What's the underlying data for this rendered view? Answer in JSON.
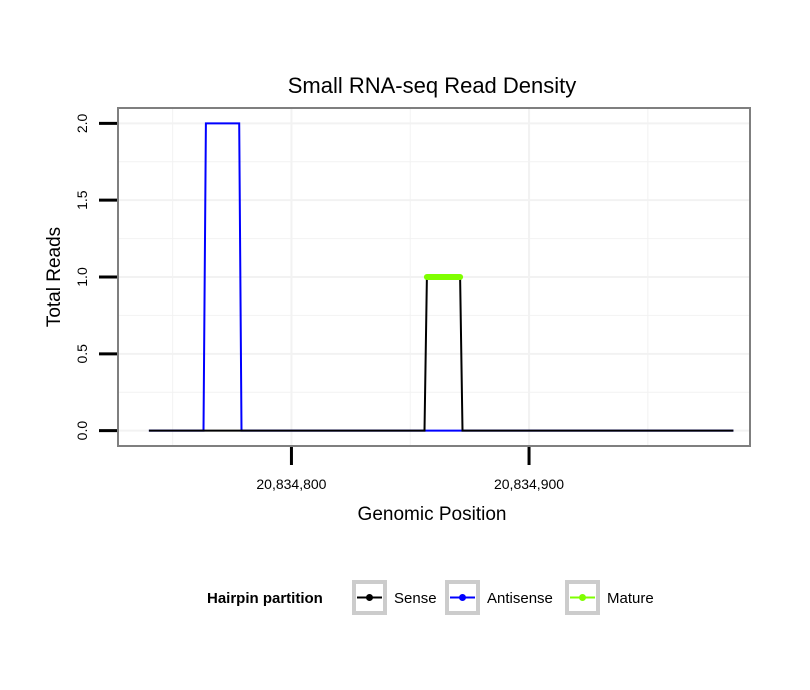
{
  "chart_data": {
    "type": "line",
    "title": "Small RNA-seq Read Density",
    "xlabel": "Genomic Position",
    "ylabel": "Total Reads",
    "xlim": [
      20834727,
      20834993
    ],
    "ylim": [
      -0.1,
      2.1
    ],
    "x_ticks": [
      {
        "value": 20834800,
        "label": "20,834,800"
      },
      {
        "value": 20834900,
        "label": "20,834,900"
      }
    ],
    "y_ticks": [
      {
        "value": 0.0,
        "label": "0.0"
      },
      {
        "value": 0.5,
        "label": "0.5"
      },
      {
        "value": 1.0,
        "label": "1.0"
      },
      {
        "value": 1.5,
        "label": "1.5"
      },
      {
        "value": 2.0,
        "label": "2.0"
      }
    ],
    "grid": true,
    "legend": {
      "title": "Hairpin partition",
      "position": "bottom",
      "entries": [
        {
          "name": "Sense",
          "color": "#000000"
        },
        {
          "name": "Antisense",
          "color": "#0000ff"
        },
        {
          "name": "Mature",
          "color": "#7fff00"
        }
      ]
    },
    "series": [
      {
        "name": "Antisense",
        "color": "#0000ff",
        "x": [
          20834740,
          20834763,
          20834764,
          20834778,
          20834779,
          20834986
        ],
        "y": [
          0,
          0,
          2,
          2,
          0,
          0
        ]
      },
      {
        "name": "Sense",
        "color": "#000000",
        "x": [
          20834740,
          20834856,
          20834857,
          20834871,
          20834872,
          20834986
        ],
        "y": [
          0,
          0,
          1,
          1,
          0,
          0
        ]
      },
      {
        "name": "Mature",
        "color": "#7fff00",
        "x": [
          20834857,
          20834871
        ],
        "y": [
          1,
          1
        ]
      }
    ]
  }
}
